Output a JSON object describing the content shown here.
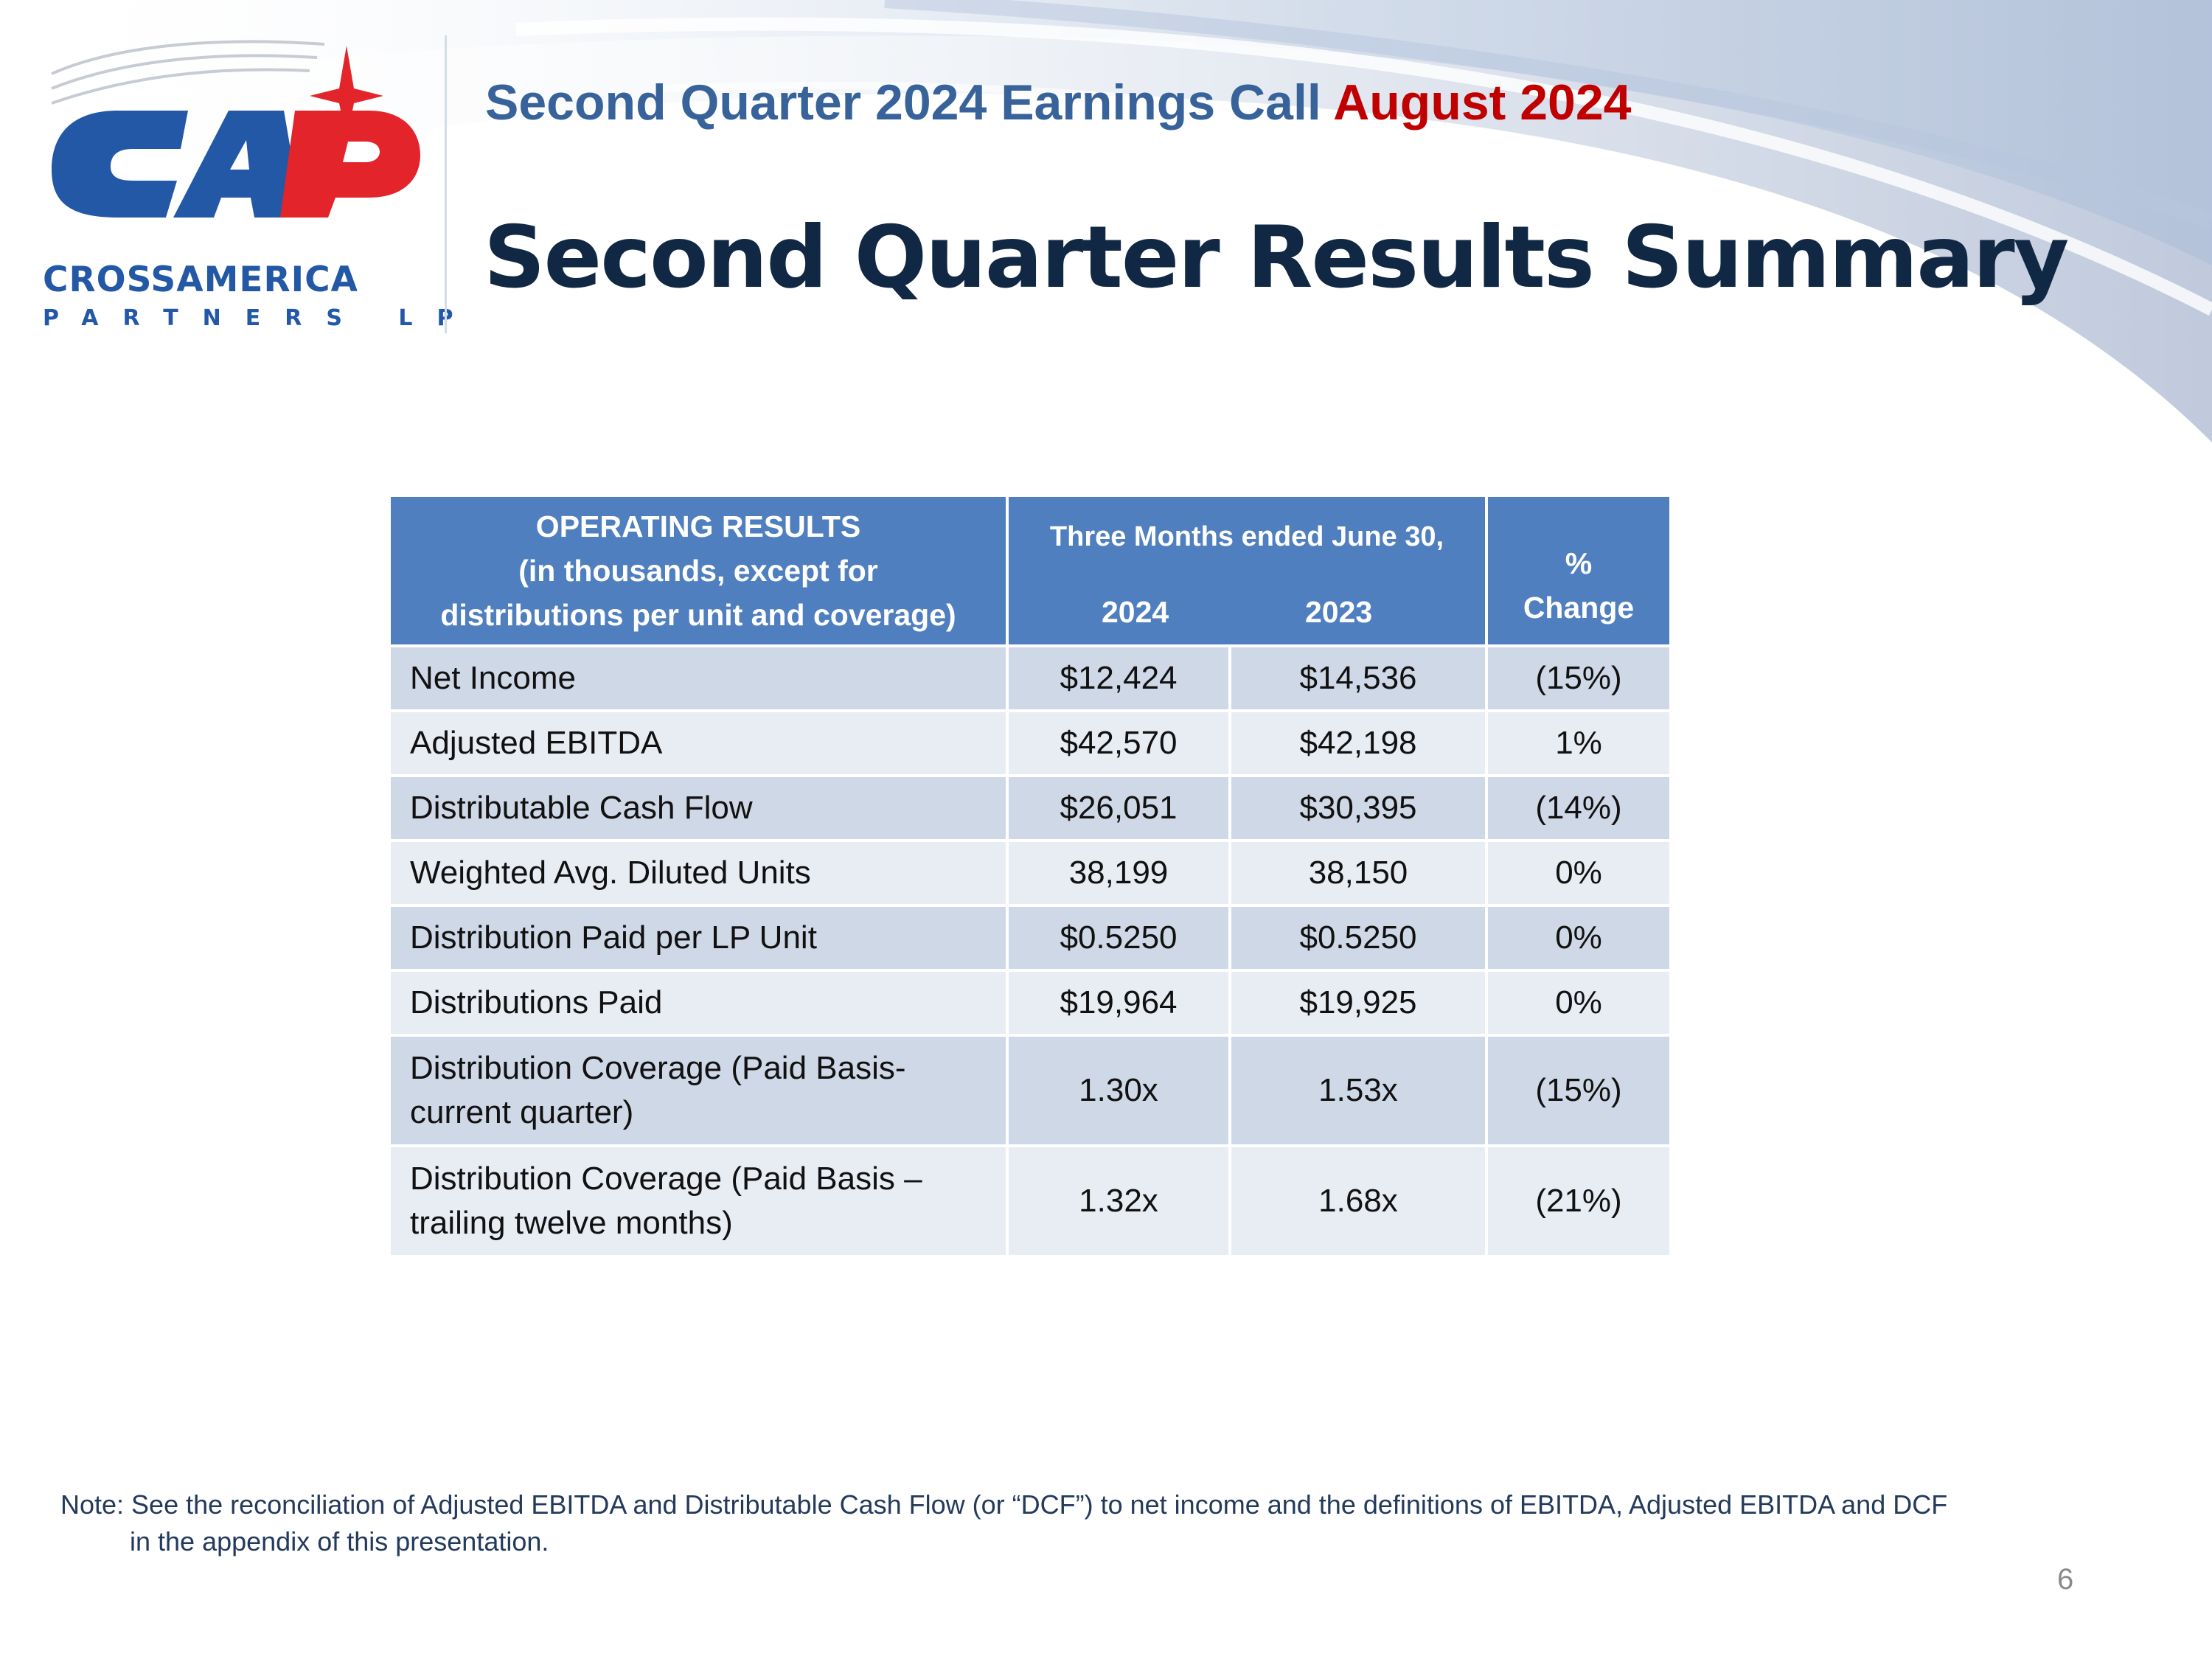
{
  "header": {
    "subtitle_main": "Second Quarter 2024 Earnings Call",
    "subtitle_date": "August 2024",
    "title": "Second Quarter Results Summary"
  },
  "logo": {
    "mark": "CAP",
    "name": "CROSSAMERICA",
    "sub": "PARTNERS LP"
  },
  "table": {
    "header": {
      "col1_line1": "OPERATING RESULTS",
      "col1_line2": "(in thousands, except for",
      "col1_line3": "distributions per unit and coverage)",
      "period_label": "Three Months ended June 30,",
      "year1": "2024",
      "year2": "2023",
      "change_line1": "%",
      "change_line2": "Change"
    },
    "rows": [
      {
        "label": "Net Income",
        "v2024": "$12,424",
        "v2023": "$14,536",
        "change": "(15%)"
      },
      {
        "label": "Adjusted EBITDA",
        "v2024": "$42,570",
        "v2023": "$42,198",
        "change": "1%"
      },
      {
        "label": "Distributable Cash Flow",
        "v2024": "$26,051",
        "v2023": "$30,395",
        "change": "(14%)"
      },
      {
        "label": "Weighted Avg. Diluted Units",
        "v2024": "38,199",
        "v2023": "38,150",
        "change": "0%"
      },
      {
        "label": "Distribution Paid per LP Unit",
        "v2024": "$0.5250",
        "v2023": "$0.5250",
        "change": "0%"
      },
      {
        "label": "Distributions Paid",
        "v2024": "$19,964",
        "v2023": "$19,925",
        "change": "0%"
      },
      {
        "label_line1": "Distribution Coverage (Paid Basis-",
        "label_line2": "current quarter)",
        "v2024": "1.30x",
        "v2023": "1.53x",
        "change": "(15%)"
      },
      {
        "label_line1": "Distribution Coverage (Paid Basis –",
        "label_line2": "trailing twelve months)",
        "v2024": "1.32x",
        "v2023": "1.68x",
        "change": "(21%)"
      }
    ]
  },
  "note": {
    "line1": "Note: See the reconciliation of Adjusted EBITDA and Distributable Cash Flow (or “DCF”) to net income and the definitions of EBITDA, Adjusted EBITDA and DCF",
    "line2": "in the appendix of this presentation."
  },
  "page_number": "6",
  "colors": {
    "header_blue": "#4f7fbe",
    "row_dark": "#cfd8e7",
    "row_light": "#e8ecf3",
    "title_navy": "#112845",
    "subtitle_blue": "#38639a",
    "accent_red": "#c00000",
    "logo_blue": "#2358a6",
    "logo_red": "#e3242b"
  }
}
